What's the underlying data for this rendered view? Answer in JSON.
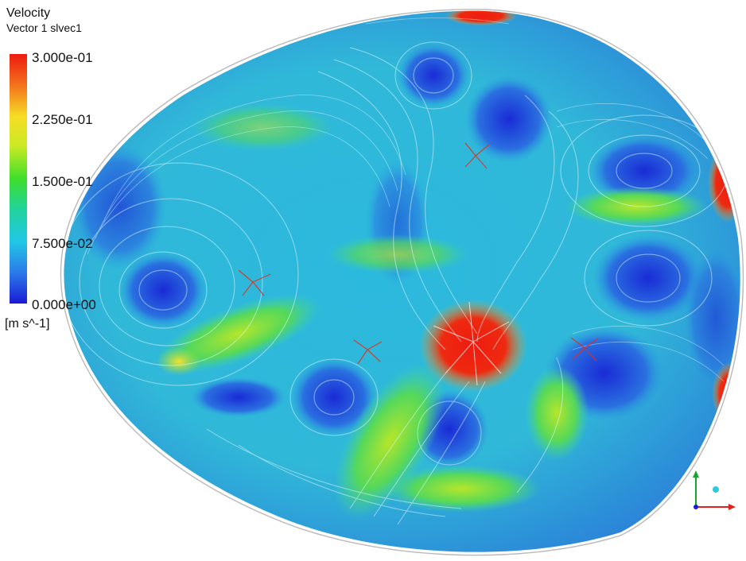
{
  "legend": {
    "title": "Velocity",
    "subtitle": "Vector 1 slvec1",
    "labels": [
      "3.000e-01",
      "2.250e-01",
      "1.500e-01",
      "7.500e-02",
      "0.000e+00"
    ],
    "unit": "[m s^-1]"
  },
  "colors": {
    "low": "#1a1bd6",
    "mid_low": "#21c8e6",
    "mid": "#3ede2c",
    "mid_high": "#f6dd25",
    "high": "#ee1b10",
    "background": "#ffffff"
  },
  "icons": {
    "axis_triad": "axis-triad-icon"
  }
}
